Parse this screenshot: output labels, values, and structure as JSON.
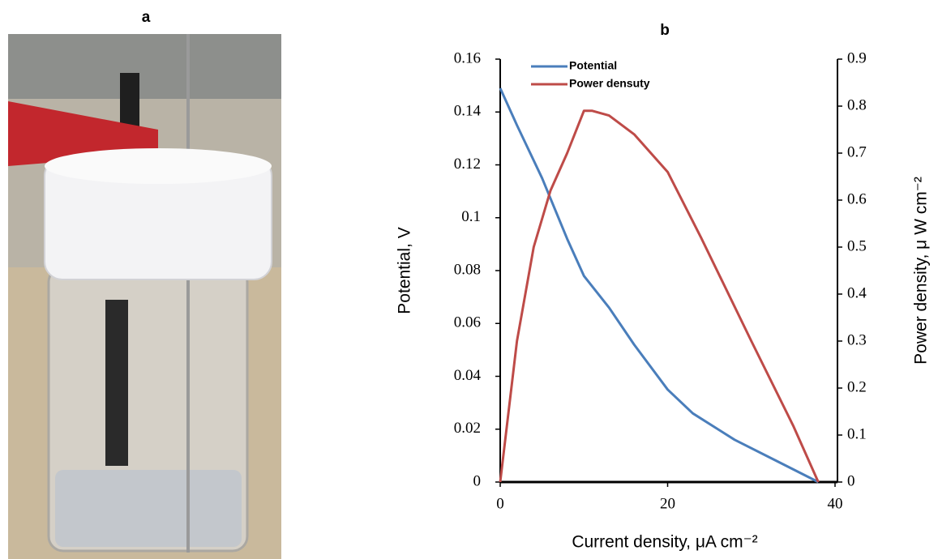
{
  "photo": {
    "label": "a"
  },
  "chart_data": {
    "type": "line",
    "title": "b",
    "xlabel": "Current density, μA cm⁻²",
    "ylabel": "Potential, V",
    "y2label": "Power density, μ W cm⁻²",
    "xlim": [
      0,
      40
    ],
    "xticks": [
      0,
      20,
      40
    ],
    "ylim": [
      0,
      0.16
    ],
    "yticks": [
      0,
      0.02,
      0.04,
      0.06,
      0.08,
      0.1,
      0.12,
      0.14,
      0.16
    ],
    "y2lim": [
      0,
      0.9
    ],
    "y2ticks": [
      0,
      0.1,
      0.2,
      0.3,
      0.4,
      0.5,
      0.6,
      0.7,
      0.8,
      0.9
    ],
    "legend": "upper left",
    "series": [
      {
        "name": "Potential",
        "color": "#4a7ebb",
        "x": [
          0,
          2,
          5,
          8,
          10,
          13,
          16,
          20,
          23,
          28,
          33,
          38
        ],
        "values": [
          0.149,
          0.135,
          0.115,
          0.092,
          0.078,
          0.066,
          0.052,
          0.035,
          0.026,
          0.016,
          0.008,
          0
        ]
      },
      {
        "name": "Power densuty",
        "color": "#be4b48",
        "axis": "y2",
        "x": [
          0,
          2,
          4,
          6,
          8,
          10,
          11,
          13,
          16,
          20,
          24,
          30,
          35,
          38
        ],
        "values": [
          0,
          0.3,
          0.5,
          0.62,
          0.7,
          0.79,
          0.79,
          0.78,
          0.74,
          0.66,
          0.52,
          0.3,
          0.12,
          0
        ]
      }
    ]
  }
}
